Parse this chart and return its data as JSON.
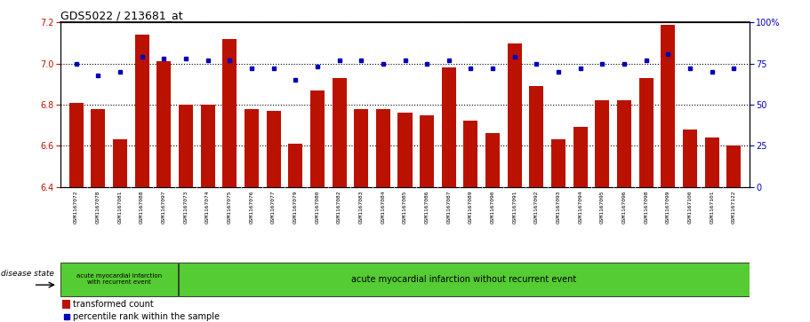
{
  "title": "GDS5022 / 213681_at",
  "samples": [
    "GSM1167072",
    "GSM1167078",
    "GSM1167081",
    "GSM1167088",
    "GSM1167097",
    "GSM1167073",
    "GSM1167074",
    "GSM1167075",
    "GSM1167076",
    "GSM1167077",
    "GSM1167079",
    "GSM1167080",
    "GSM1167082",
    "GSM1167083",
    "GSM1167084",
    "GSM1167085",
    "GSM1167086",
    "GSM1167087",
    "GSM1167089",
    "GSM1167090",
    "GSM1167091",
    "GSM1167092",
    "GSM1167093",
    "GSM1167094",
    "GSM1167095",
    "GSM1167096",
    "GSM1167098",
    "GSM1167099",
    "GSM1167100",
    "GSM1167101",
    "GSM1167122"
  ],
  "bar_values": [
    6.81,
    6.78,
    6.63,
    7.14,
    7.01,
    6.8,
    6.8,
    7.12,
    6.78,
    6.77,
    6.61,
    6.87,
    6.93,
    6.78,
    6.78,
    6.76,
    6.75,
    6.98,
    6.72,
    6.66,
    7.1,
    6.89,
    6.63,
    6.69,
    6.82,
    6.82,
    6.93,
    7.19,
    6.68,
    6.64,
    6.6
  ],
  "percentile_values": [
    75,
    68,
    70,
    79,
    78,
    78,
    77,
    77,
    72,
    72,
    65,
    73,
    77,
    77,
    75,
    77,
    75,
    77,
    72,
    72,
    79,
    75,
    70,
    72,
    75,
    75,
    77,
    81,
    72,
    70,
    72
  ],
  "ylim_left": [
    6.4,
    7.2
  ],
  "ylim_right": [
    0,
    100
  ],
  "yticks_left": [
    6.4,
    6.6,
    6.8,
    7.0,
    7.2
  ],
  "yticks_right": [
    0,
    25,
    50,
    75,
    100
  ],
  "bar_color": "#bb1100",
  "dot_color": "#0000bb",
  "group1_label": "acute myocardial infarction\nwith recurrent event",
  "group2_label": "acute myocardial infarction without recurrent event",
  "group1_count": 5,
  "disease_state_label": "disease state",
  "legend_bar_label": "transformed count",
  "legend_dot_label": "percentile rank within the sample",
  "xtick_bg": "#d0d0d0",
  "green_bg": "#66cc44",
  "plot_bg": "#ffffff"
}
